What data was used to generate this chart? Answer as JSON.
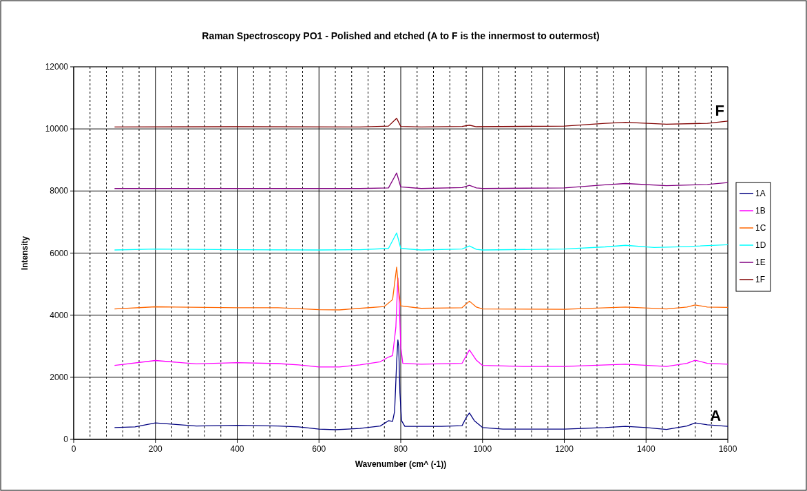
{
  "chart_data": {
    "type": "line",
    "title": "Raman Spectroscopy PO1 - Polished and etched (A to F is the innermost to outermost)",
    "xlabel": "Wavenumber (cm^ (-1))",
    "ylabel": "Intensity",
    "xlim": [
      0,
      1600
    ],
    "ylim": [
      0,
      12000
    ],
    "xticks": [
      0,
      {
        "value": 40,
        "label": null
      },
      {
        "value": 80,
        "label": null
      },
      {
        "value": 120,
        "label": null
      },
      {
        "value": 160,
        "label": null
      },
      200,
      {
        "value": 240,
        "label": null
      },
      {
        "value": 280,
        "label": null
      },
      {
        "value": 320,
        "label": null
      },
      {
        "value": 360,
        "label": null
      },
      400,
      {
        "value": 440,
        "label": null
      },
      {
        "value": 480,
        "label": null
      },
      {
        "value": 520,
        "label": null
      },
      {
        "value": 560,
        "label": null
      },
      600,
      {
        "value": 640,
        "label": null
      },
      {
        "value": 680,
        "label": null
      },
      {
        "value": 720,
        "label": null
      },
      {
        "value": 760,
        "label": null
      },
      800,
      {
        "value": 840,
        "label": null
      },
      {
        "value": 880,
        "label": null
      },
      {
        "value": 920,
        "label": null
      },
      {
        "value": 960,
        "label": null
      },
      1000,
      {
        "value": 1040,
        "label": null
      },
      {
        "value": 1080,
        "label": null
      },
      {
        "value": 1120,
        "label": null
      },
      {
        "value": 1160,
        "label": null
      },
      1200,
      {
        "value": 1240,
        "label": null
      },
      {
        "value": 1280,
        "label": null
      },
      {
        "value": 1320,
        "label": null
      },
      {
        "value": 1360,
        "label": null
      },
      1400,
      {
        "value": 1440,
        "label": null
      },
      {
        "value": 1480,
        "label": null
      },
      {
        "value": 1520,
        "label": null
      },
      {
        "value": 1560,
        "label": null
      },
      1600
    ],
    "yticks": [
      0,
      2000,
      4000,
      6000,
      8000,
      10000,
      12000
    ],
    "grid": true,
    "legend": "right",
    "marker": "none",
    "line_style": "solid",
    "annotations": [
      {
        "text": "A",
        "x": 1570,
        "y": 420
      },
      {
        "text": "F",
        "x": 1580,
        "y": 10250
      }
    ],
    "series": [
      {
        "name": "1A",
        "color": "#000080",
        "x": [
          100,
          150,
          200,
          250,
          300,
          400,
          500,
          550,
          600,
          640,
          700,
          750,
          770,
          780,
          785,
          790,
          793,
          795,
          798,
          802,
          810,
          900,
          950,
          960,
          968,
          980,
          1000,
          1050,
          1200,
          1300,
          1350,
          1400,
          1450,
          1500,
          1520,
          1550,
          1600
        ],
        "values": [
          380,
          400,
          530,
          480,
          430,
          450,
          430,
          400,
          330,
          310,
          350,
          430,
          600,
          580,
          900,
          2500,
          3200,
          3000,
          1500,
          600,
          420,
          420,
          440,
          700,
          850,
          600,
          380,
          330,
          330,
          380,
          420,
          380,
          320,
          430,
          530,
          470,
          420
        ]
      },
      {
        "name": "1B",
        "color": "#ff00ff",
        "x": [
          100,
          200,
          300,
          400,
          500,
          550,
          600,
          650,
          700,
          750,
          770,
          780,
          788,
          793,
          796,
          800,
          805,
          850,
          950,
          968,
          985,
          1000,
          1100,
          1200,
          1350,
          1450,
          1500,
          1520,
          1550,
          1600
        ],
        "values": [
          2380,
          2540,
          2430,
          2470,
          2440,
          2400,
          2330,
          2330,
          2400,
          2500,
          2650,
          2700,
          3600,
          5200,
          4500,
          3000,
          2450,
          2420,
          2450,
          2880,
          2550,
          2380,
          2350,
          2350,
          2420,
          2350,
          2450,
          2550,
          2450,
          2420
        ]
      },
      {
        "name": "1C",
        "color": "#ff6600",
        "x": [
          100,
          200,
          400,
          500,
          600,
          650,
          700,
          760,
          780,
          790,
          795,
          800,
          850,
          950,
          968,
          985,
          1000,
          1200,
          1350,
          1450,
          1500,
          1520,
          1550,
          1600
        ],
        "values": [
          4200,
          4270,
          4240,
          4240,
          4180,
          4170,
          4220,
          4280,
          4500,
          5550,
          4800,
          4300,
          4220,
          4240,
          4450,
          4260,
          4200,
          4190,
          4260,
          4200,
          4260,
          4330,
          4260,
          4250
        ]
      },
      {
        "name": "1D",
        "color": "#00ffff",
        "x": [
          100,
          200,
          400,
          600,
          700,
          770,
          790,
          800,
          850,
          950,
          968,
          985,
          1000,
          1200,
          1300,
          1350,
          1420,
          1500,
          1600
        ],
        "values": [
          6100,
          6130,
          6110,
          6100,
          6110,
          6150,
          6650,
          6150,
          6100,
          6130,
          6230,
          6120,
          6100,
          6130,
          6200,
          6250,
          6180,
          6210,
          6270
        ]
      },
      {
        "name": "1E",
        "color": "#800080",
        "x": [
          100,
          400,
          600,
          700,
          770,
          790,
          800,
          850,
          950,
          968,
          985,
          1000,
          1200,
          1300,
          1350,
          1450,
          1550,
          1600
        ],
        "values": [
          8080,
          8080,
          8080,
          8080,
          8100,
          8580,
          8130,
          8080,
          8110,
          8180,
          8100,
          8080,
          8100,
          8200,
          8240,
          8170,
          8210,
          8270
        ]
      },
      {
        "name": "1F",
        "color": "#800000",
        "x": [
          100,
          400,
          700,
          770,
          790,
          800,
          850,
          950,
          968,
          985,
          1200,
          1300,
          1350,
          1450,
          1550,
          1600
        ],
        "values": [
          10060,
          10070,
          10060,
          10090,
          10340,
          10080,
          10060,
          10080,
          10120,
          10070,
          10090,
          10180,
          10210,
          10150,
          10180,
          10250
        ]
      }
    ]
  }
}
